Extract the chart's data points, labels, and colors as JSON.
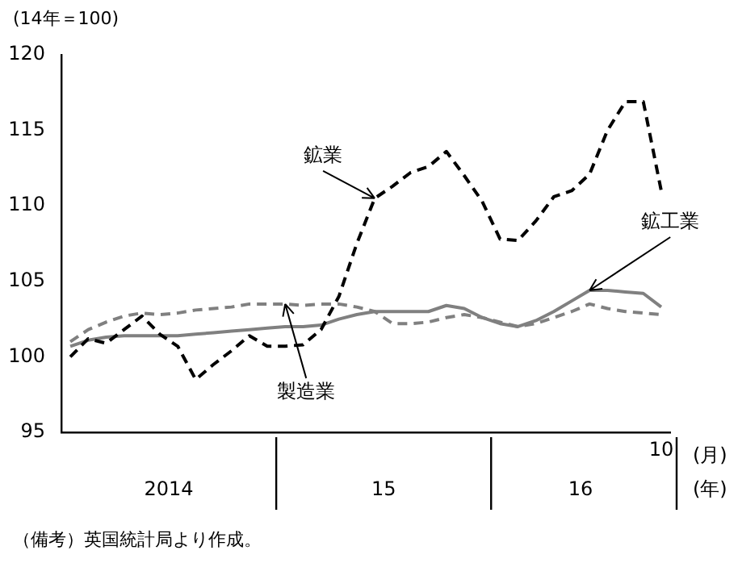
{
  "chart_data": {
    "type": "line",
    "ylabel": "(14年＝100)",
    "xlabel": "(月)",
    "categories": [
      null,
      null,
      null,
      null,
      null,
      null,
      null,
      null,
      null,
      null,
      null,
      null,
      null,
      null,
      null,
      null,
      null,
      null,
      null,
      null,
      null,
      null,
      null,
      null,
      null,
      null,
      null,
      null,
      null,
      null,
      null,
      null,
      null,
      "10"
    ],
    "series": [
      {
        "name": "鉱業",
        "color": "#000000",
        "line_style": "dashed",
        "values": [
          100.0,
          101.2,
          100.9,
          101.8,
          102.7,
          101.5,
          100.7,
          98.5,
          99.5,
          100.4,
          101.4,
          100.7,
          100.7,
          100.8,
          101.8,
          104.0,
          107.5,
          110.5,
          111.3,
          112.2,
          112.6,
          113.6,
          112.0,
          110.3,
          107.8,
          107.7,
          109.0,
          110.6,
          111.0,
          112.1,
          115.0,
          116.9,
          116.9,
          111.0
        ]
      },
      {
        "name": "製造業",
        "color": "#808080",
        "line_style": "dashed",
        "values": [
          101.0,
          101.8,
          102.3,
          102.7,
          102.9,
          102.8,
          102.9,
          103.1,
          103.2,
          103.3,
          103.5,
          103.5,
          103.5,
          103.4,
          103.5,
          103.5,
          103.3,
          103.0,
          102.2,
          102.2,
          102.3,
          102.6,
          102.8,
          102.6,
          102.3,
          102.0,
          102.2,
          102.6,
          103.0,
          103.5,
          103.2,
          103.0,
          102.9,
          102.8
        ]
      },
      {
        "name": "鉱工業",
        "color": "#808080",
        "line_style": "solid",
        "values": [
          100.7,
          101.1,
          101.3,
          101.4,
          101.4,
          101.4,
          101.4,
          101.5,
          101.6,
          101.7,
          101.8,
          101.9,
          102.0,
          102.0,
          102.1,
          102.5,
          102.8,
          103.0,
          103.0,
          103.0,
          103.0,
          103.4,
          103.2,
          102.6,
          102.2,
          102.0,
          102.4,
          103.0,
          103.7,
          104.4,
          104.4,
          104.3,
          104.2,
          103.3
        ]
      }
    ],
    "ylim": [
      95,
      120
    ],
    "yticks": [
      95,
      100,
      105,
      110,
      115,
      120
    ],
    "grid": false,
    "legend": false,
    "marker": "none",
    "annotations": [
      "2014",
      "15",
      "16",
      "(年)",
      "（備考）英国統計局より作成。"
    ]
  }
}
